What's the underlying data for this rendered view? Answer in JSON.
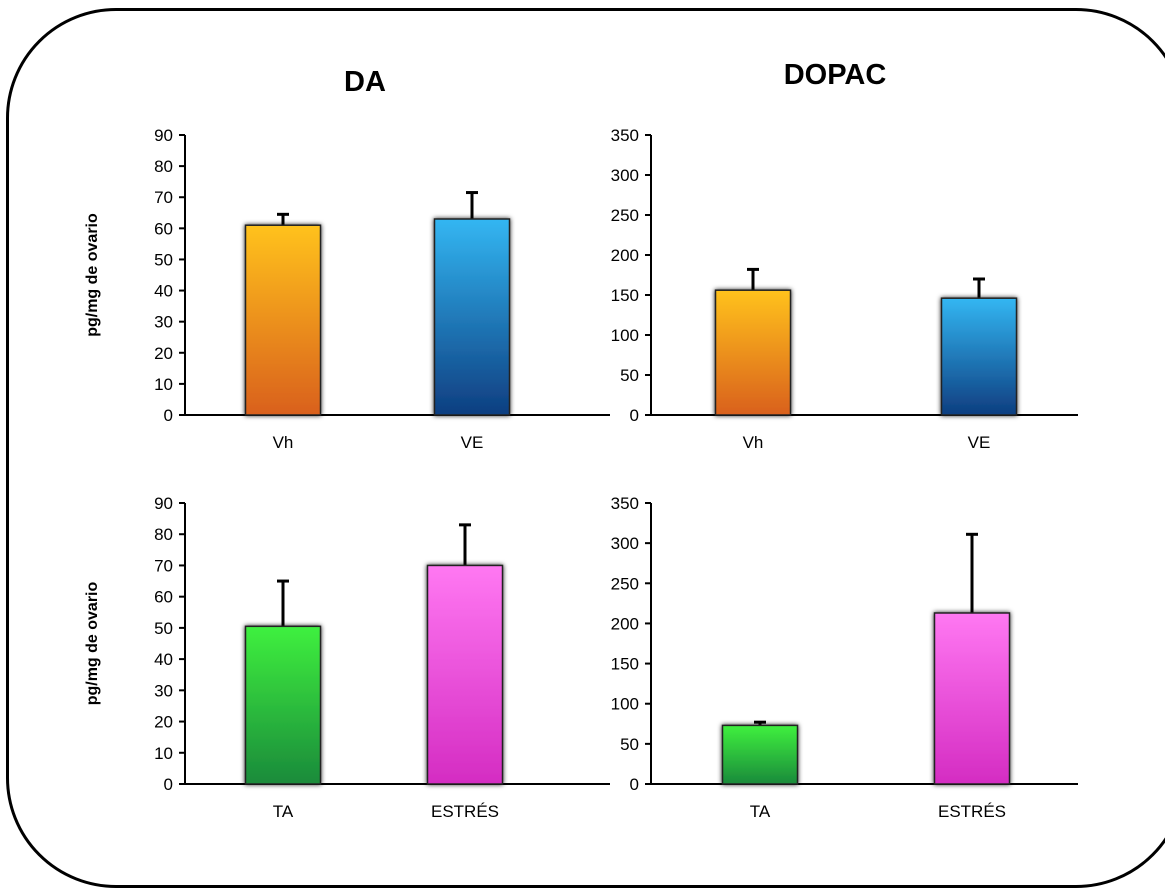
{
  "column_titles": {
    "left": "DA",
    "right": "DOPAC"
  },
  "chart_data": [
    {
      "type": "bar",
      "title": "",
      "ylabel": "pg/mg de ovario",
      "ylim": [
        0,
        90
      ],
      "yticks": [
        0,
        10,
        20,
        30,
        40,
        50,
        60,
        70,
        80,
        90
      ],
      "categories": [
        "Vh",
        "VE"
      ],
      "values": [
        61,
        63
      ],
      "errors": [
        3.5,
        8.5
      ],
      "bar_colors": [
        [
          "#ffc21a",
          "#d9601a"
        ],
        [
          "#33b6f2",
          "#0e3e80"
        ]
      ]
    },
    {
      "type": "bar",
      "title": "",
      "ylabel": "",
      "ylim": [
        0,
        350
      ],
      "yticks": [
        0,
        50,
        100,
        150,
        200,
        250,
        300,
        350
      ],
      "categories": [
        "Vh",
        "VE"
      ],
      "values": [
        156,
        146
      ],
      "errors": [
        26,
        24
      ],
      "bar_colors": [
        [
          "#ffc21a",
          "#d9601a"
        ],
        [
          "#33b6f2",
          "#0e3e80"
        ]
      ]
    },
    {
      "type": "bar",
      "title": "",
      "ylabel": "pg/mg de ovario",
      "ylim": [
        0,
        90
      ],
      "yticks": [
        0,
        10,
        20,
        30,
        40,
        50,
        60,
        70,
        80,
        90
      ],
      "categories": [
        "TA",
        "ESTRÉS"
      ],
      "values": [
        50.5,
        70
      ],
      "errors": [
        14.5,
        13
      ],
      "bar_colors": [
        [
          "#3ff03f",
          "#1a8a3a"
        ],
        [
          "#ff78f2",
          "#d42cc2"
        ]
      ]
    },
    {
      "type": "bar",
      "title": "",
      "ylabel": "",
      "ylim": [
        0,
        350
      ],
      "yticks": [
        0,
        50,
        100,
        150,
        200,
        250,
        300,
        350
      ],
      "categories": [
        "TA",
        "ESTRÉS"
      ],
      "values": [
        73,
        213
      ],
      "errors": [
        4,
        98
      ],
      "bar_colors": [
        [
          "#3ff03f",
          "#1a8a3a"
        ],
        [
          "#ff78f2",
          "#d42cc2"
        ]
      ]
    }
  ]
}
